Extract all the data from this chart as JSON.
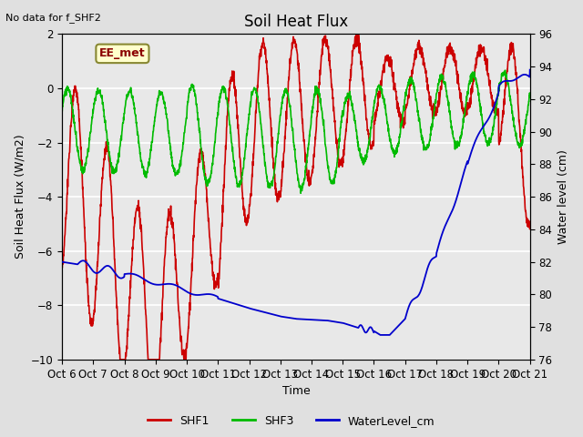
{
  "title": "Soil Heat Flux",
  "top_left_text": "No data for f_SHF2",
  "annotation_box": "EE_met",
  "xlabel": "Time",
  "ylabel_left": "Soil Heat Flux (W/m2)",
  "ylabel_right": "Water level (cm)",
  "ylim_left": [
    -10,
    2
  ],
  "ylim_right": [
    76,
    96
  ],
  "yticks_left": [
    -10,
    -8,
    -6,
    -4,
    -2,
    0,
    2
  ],
  "yticks_right": [
    76,
    78,
    80,
    82,
    84,
    86,
    88,
    90,
    92,
    94,
    96
  ],
  "xtick_labels": [
    "Oct 6",
    "Oct 7",
    "Oct 8",
    "Oct 9",
    "Oct 10",
    "Oct 11",
    "Oct 12",
    "Oct 13",
    "Oct 14",
    "Oct 15",
    "Oct 16",
    "Oct 17",
    "Oct 18",
    "Oct 19",
    "Oct 20",
    "Oct 21"
  ],
  "background_color": "#e0e0e0",
  "plot_bg_color": "#e8e8e8",
  "grid_color": "#ffffff",
  "shf1_color": "#cc0000",
  "shf3_color": "#00bb00",
  "wl_color": "#0000cc",
  "legend_entries": [
    "SHF1",
    "SHF3",
    "WaterLevel_cm"
  ],
  "title_fontsize": 12,
  "axis_label_fontsize": 9,
  "tick_fontsize": 8.5
}
